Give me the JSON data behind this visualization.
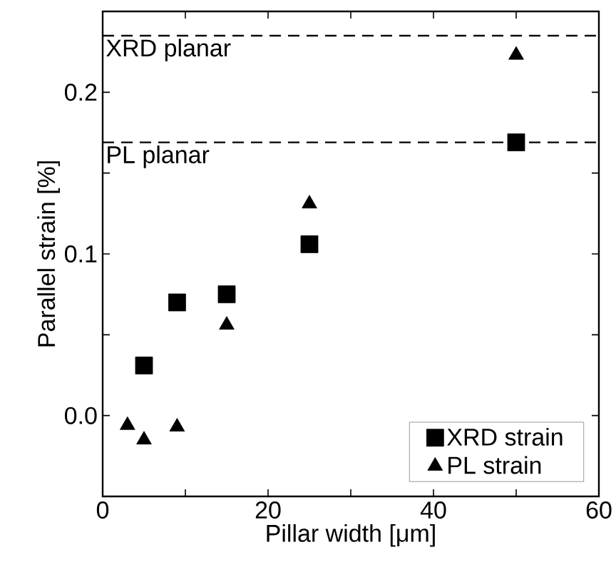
{
  "chart_data": {
    "type": "scatter",
    "xlabel": "Pillar width [μm]",
    "ylabel": "Parallel strain [%]",
    "xlim": [
      0,
      60
    ],
    "ylim": [
      -0.05,
      0.25
    ],
    "xticks": [
      0,
      {
        "value": 10,
        "label": null
      },
      20,
      {
        "value": 30,
        "label": null
      },
      40,
      {
        "value": 50,
        "label": null
      },
      60
    ],
    "yticks": [
      {
        "value": -0.05,
        "label": null
      },
      {
        "value": 0,
        "label": "0.0"
      },
      {
        "value": 0.05,
        "label": null
      },
      0.1,
      {
        "value": 0.15,
        "label": null
      },
      0.2,
      {
        "value": 0.25,
        "label": null
      }
    ],
    "series": [
      {
        "name": "XRD strain",
        "color": "#000000",
        "marker": "square",
        "x": [
          5,
          9,
          15,
          25,
          50
        ],
        "values": [
          0.031,
          0.07,
          0.075,
          0.106,
          0.169
        ]
      },
      {
        "name": "PL strain",
        "color": "#000000",
        "marker": "triangle",
        "x": [
          3,
          5,
          9,
          15,
          25,
          50
        ],
        "values": [
          -0.006,
          -0.015,
          -0.007,
          0.056,
          0.131,
          0.223
        ]
      }
    ],
    "ref_lines": [
      {
        "axis": "y",
        "value": 0.235,
        "label": "XRD planar",
        "color": "#000000",
        "line_style": "dashed"
      },
      {
        "axis": "y",
        "value": 0.169,
        "label": "PL planar",
        "color": "#000000",
        "line_style": "dashed"
      }
    ],
    "legend": "bottom right",
    "grid": false
  }
}
